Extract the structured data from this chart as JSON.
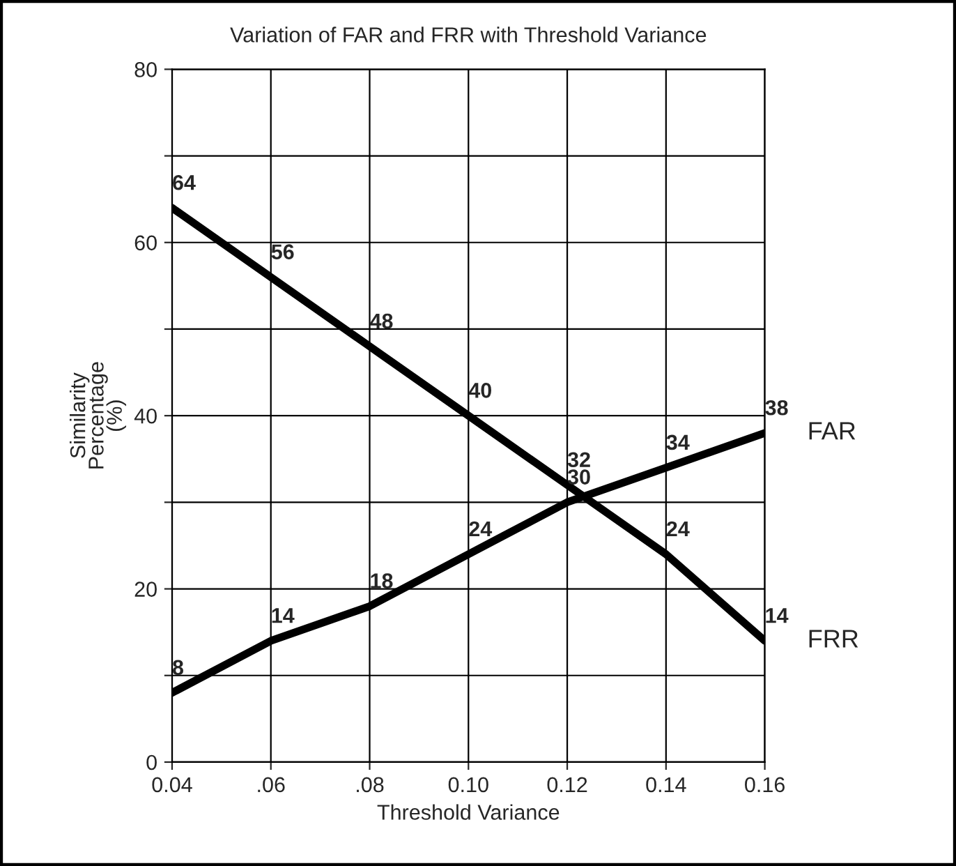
{
  "chart_data": {
    "type": "line",
    "title": "Variation of FAR and FRR with Threshold Variance",
    "xlabel": "Threshold Variance",
    "ylabel": "Similarity\nPercentage\n(%)",
    "x": [
      0.04,
      0.06,
      0.08,
      0.1,
      0.12,
      0.14,
      0.16
    ],
    "series": [
      {
        "name": "FAR",
        "color": "#000000",
        "values": [
          8,
          14,
          18,
          24,
          30,
          34,
          38
        ]
      },
      {
        "name": "FRR",
        "color": "#000000",
        "values": [
          64,
          56,
          48,
          40,
          32,
          24,
          14
        ]
      }
    ],
    "xlim": [
      0.04,
      0.16
    ],
    "xticks": [
      {
        "value": 0.04,
        "label": "0.04"
      },
      {
        "value": 0.06,
        "label": ".06"
      },
      {
        "value": 0.08,
        "label": ".08"
      },
      {
        "value": 0.1,
        "label": "0.10"
      },
      {
        "value": 0.12,
        "label": "0.12"
      },
      {
        "value": 0.14,
        "label": "0.14"
      },
      {
        "value": 0.16,
        "label": "0.16"
      }
    ],
    "ylim": [
      0,
      80
    ],
    "yticks": [
      0,
      {
        "value": 10,
        "label": null
      },
      20,
      {
        "value": 30,
        "label": null
      },
      40,
      {
        "value": 50,
        "label": null
      },
      60,
      {
        "value": 70,
        "label": null
      },
      80
    ],
    "grid": true,
    "data_labels": true,
    "legend": false,
    "marker": "none",
    "line_style": "solid"
  }
}
